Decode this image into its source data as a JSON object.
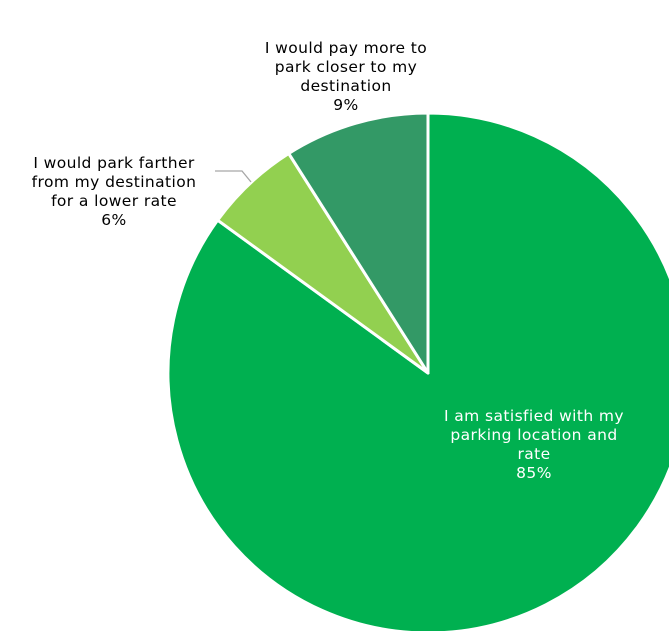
{
  "chart_data": {
    "type": "pie",
    "title": "",
    "start_angle_deg": 0,
    "direction": "clockwise",
    "slices": [
      {
        "label_lines": [
          "I am satisfied with my",
          "parking location and",
          "rate"
        ],
        "percent_label": "85%",
        "value": 85,
        "color": "#00B050",
        "label_color": "#ffffff"
      },
      {
        "label_lines": [
          "I would park farther",
          "from my destination",
          "for a lower rate"
        ],
        "percent_label": "6%",
        "value": 6,
        "color": "#92D050",
        "label_color": "#000000"
      },
      {
        "label_lines": [
          "I would pay more to",
          "park closer to my",
          "destination"
        ],
        "percent_label": "9%",
        "value": 9,
        "color": "#339966",
        "label_color": "#000000"
      }
    ],
    "leader_line_color": "#A6A6A6",
    "slice_border_color": "#ffffff"
  }
}
